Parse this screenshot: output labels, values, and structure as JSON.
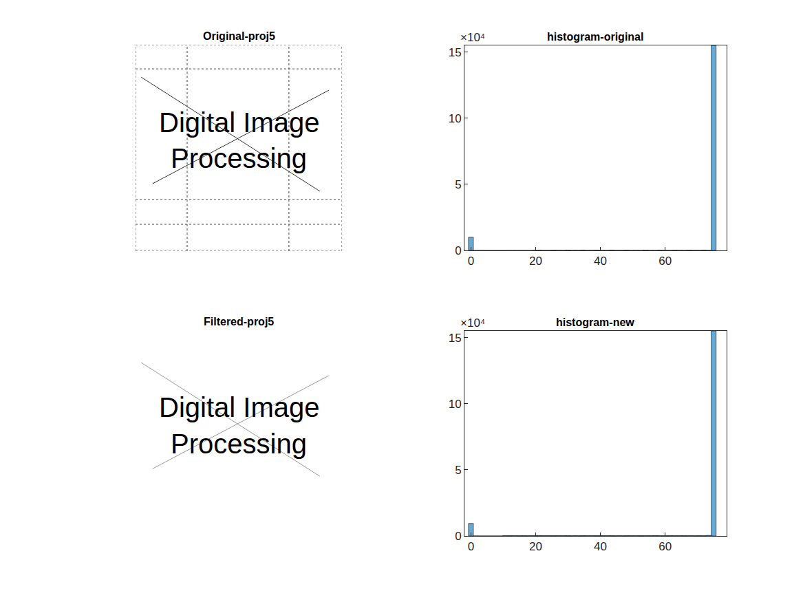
{
  "chart_data": [
    {
      "type": "image",
      "title": "Original-proj5",
      "text_lines": [
        "Digital Image",
        "Processing"
      ],
      "grid": true,
      "tick_labels": false
    },
    {
      "type": "histogram",
      "title": "histogram-original",
      "bins": [
        -0.75,
        0.75,
        2.25,
        3.75,
        5.25,
        6.75,
        8.25,
        9.75,
        11.25,
        12.75,
        14.25,
        15.75,
        17.25,
        18.75,
        20.25,
        21.75,
        23.25,
        24.75,
        26.25,
        27.75,
        29.25,
        30.75,
        32.25,
        33.75,
        35.25,
        36.75,
        38.25,
        39.75,
        41.25,
        42.75,
        44.25,
        45.75,
        47.25,
        48.75,
        50.25,
        51.75,
        53.25,
        54.75,
        56.25,
        57.75,
        59.25,
        60.75,
        62.25,
        63.75,
        65.25,
        66.75,
        68.25,
        69.75,
        71.25,
        72.75,
        74.25,
        75.75
      ],
      "values": [
        1.0,
        0,
        0,
        0,
        0,
        0,
        0,
        0,
        0,
        0,
        0,
        0,
        0,
        0.01,
        0.02,
        0.01,
        0.01,
        0.02,
        0.01,
        0.01,
        0.02,
        0.01,
        0.01,
        0.02,
        0.01,
        0.01,
        0.02,
        0.01,
        0.01,
        0.02,
        0.01,
        0.01,
        0.02,
        0.01,
        0.01,
        0.01,
        0.02,
        0.01,
        0.01,
        0.02,
        0.01,
        0.01,
        0.02,
        0.01,
        0.01,
        0.02,
        0.01,
        0.01,
        0.02,
        0.01,
        15.5
      ],
      "color": "#66abd7",
      "xlim": [
        -2,
        79
      ],
      "ylim": [
        0,
        15.5
      ],
      "xticks": [
        0,
        20,
        40,
        60
      ],
      "yticks": [
        0,
        5,
        10,
        15
      ],
      "grid": false,
      "annotations": [
        "×10⁴"
      ]
    },
    {
      "type": "image",
      "title": "Filtered-proj5",
      "text_lines": [
        "Digital Image",
        "Processing"
      ],
      "grid": false,
      "tick_labels": false
    },
    {
      "type": "histogram",
      "title": "histogram-new",
      "bins": [
        -0.75,
        0.75,
        2.25,
        3.75,
        5.25,
        6.75,
        8.25,
        9.75,
        11.25,
        12.75,
        14.25,
        15.75,
        17.25,
        18.75,
        20.25,
        21.75,
        23.25,
        24.75,
        26.25,
        27.75,
        29.25,
        30.75,
        32.25,
        33.75,
        35.25,
        36.75,
        38.25,
        39.75,
        41.25,
        42.75,
        44.25,
        45.75,
        47.25,
        48.75,
        50.25,
        51.75,
        53.25,
        54.75,
        56.25,
        57.75,
        59.25,
        60.75,
        62.25,
        63.75,
        65.25,
        66.75,
        68.25,
        69.75,
        71.25,
        72.75,
        74.25,
        75.75
      ],
      "values": [
        0.95,
        0,
        0,
        0,
        0,
        0,
        0,
        0.02,
        0.03,
        0.02,
        0.02,
        0.03,
        0.02,
        0.02,
        0.03,
        0.02,
        0.02,
        0.03,
        0.02,
        0.02,
        0.03,
        0.02,
        0.02,
        0.03,
        0.02,
        0.02,
        0.03,
        0.02,
        0.02,
        0.03,
        0.02,
        0.02,
        0.03,
        0.02,
        0.02,
        0.03,
        0.02,
        0.02,
        0.03,
        0.02,
        0.02,
        0.03,
        0.02,
        0.02,
        0.03,
        0.02,
        0.02,
        0.03,
        0.02,
        0.04,
        15.5
      ],
      "color": "#66abd7",
      "xlim": [
        -2,
        79
      ],
      "ylim": [
        0,
        15.5
      ],
      "xticks": [
        0,
        20,
        40,
        60
      ],
      "yticks": [
        0,
        5,
        10,
        15
      ],
      "grid": false,
      "annotations": [
        "×10⁴"
      ]
    }
  ]
}
